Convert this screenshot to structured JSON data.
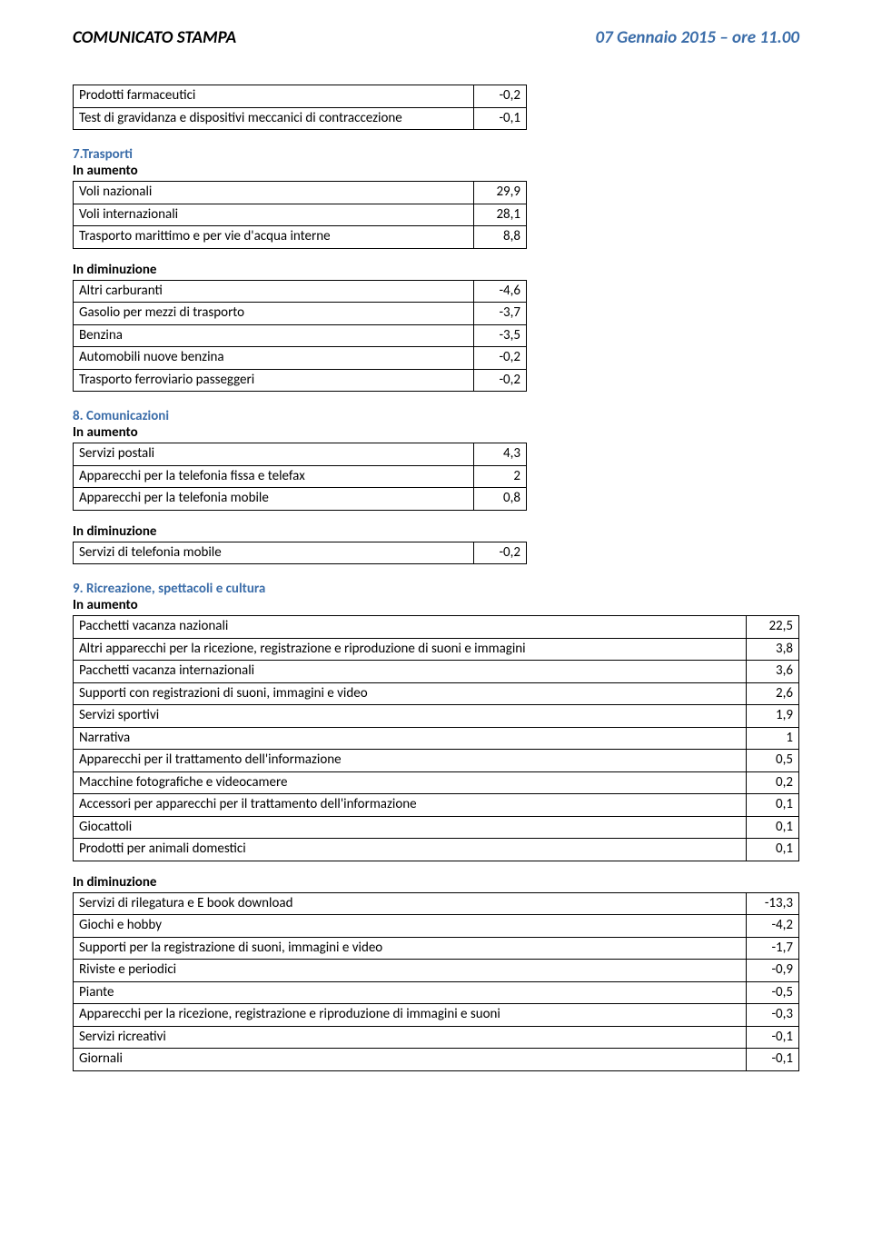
{
  "header": {
    "left": "COMUNICATO STAMPA",
    "right": "07 Gennaio 2015 – ore 11.00"
  },
  "labels": {
    "in_aumento": "In aumento",
    "in_diminuzione": "In diminuzione"
  },
  "top_table": {
    "rows": [
      {
        "label": "Prodotti farmaceutici",
        "value": "-0,2"
      },
      {
        "label": "Test di gravidanza e dispositivi meccanici di contraccezione",
        "value": "-0,1"
      }
    ]
  },
  "sections": [
    {
      "title": "7.Trasporti",
      "width": "narrow",
      "aumento": [
        {
          "label": "Voli nazionali",
          "value": "29,9"
        },
        {
          "label": "Voli internazionali",
          "value": "28,1"
        },
        {
          "label": "Trasporto marittimo e per vie d'acqua interne",
          "value": "8,8"
        }
      ],
      "diminuzione": [
        {
          "label": "Altri carburanti",
          "value": "-4,6"
        },
        {
          "label": "Gasolio per mezzi di trasporto",
          "value": "-3,7"
        },
        {
          "label": "Benzina",
          "value": "-3,5"
        },
        {
          "label": "Automobili nuove benzina",
          "value": "-0,2"
        },
        {
          "label": "Trasporto ferroviario passeggeri",
          "value": "-0,2"
        }
      ]
    },
    {
      "title": "8. Comunicazioni",
      "width": "narrow",
      "aumento": [
        {
          "label": "Servizi postali",
          "value": "4,3"
        },
        {
          "label": "Apparecchi per la telefonia fissa e telefax",
          "value": "2"
        },
        {
          "label": "Apparecchi per la telefonia mobile",
          "value": "0,8"
        }
      ],
      "diminuzione": [
        {
          "label": "Servizi di telefonia mobile",
          "value": "-0,2"
        }
      ]
    },
    {
      "title": "9. Ricreazione, spettacoli e cultura",
      "width": "wide",
      "aumento": [
        {
          "label": "Pacchetti vacanza nazionali",
          "value": "22,5"
        },
        {
          "label": "Altri apparecchi per la ricezione, registrazione e riproduzione di suoni e immagini",
          "value": "3,8"
        },
        {
          "label": "Pacchetti vacanza internazionali",
          "value": "3,6"
        },
        {
          "label": "Supporti con registrazioni di suoni, immagini e video",
          "value": "2,6"
        },
        {
          "label": "Servizi sportivi",
          "value": "1,9"
        },
        {
          "label": "Narrativa",
          "value": "1"
        },
        {
          "label": "Apparecchi per il trattamento dell'informazione",
          "value": "0,5"
        },
        {
          "label": "Macchine fotografiche e videocamere",
          "value": "0,2"
        },
        {
          "label": "Accessori per apparecchi per il trattamento dell'informazione",
          "value": "0,1"
        },
        {
          "label": "Giocattoli",
          "value": "0,1"
        },
        {
          "label": "Prodotti per animali domestici",
          "value": "0,1"
        }
      ],
      "diminuzione": [
        {
          "label": "Servizi di rilegatura e E book download",
          "value": "-13,3"
        },
        {
          "label": "Giochi e hobby",
          "value": "-4,2"
        },
        {
          "label": "Supporti per la registrazione di suoni, immagini e video",
          "value": "-1,7"
        },
        {
          "label": "Riviste e periodici",
          "value": "-0,9"
        },
        {
          "label": "Piante",
          "value": "-0,5"
        },
        {
          "label": "Apparecchi per la ricezione, registrazione e riproduzione di immagini e suoni",
          "value": "-0,3"
        },
        {
          "label": "Servizi ricreativi",
          "value": "-0,1"
        },
        {
          "label": "Giornali",
          "value": "-0,1"
        }
      ]
    }
  ]
}
